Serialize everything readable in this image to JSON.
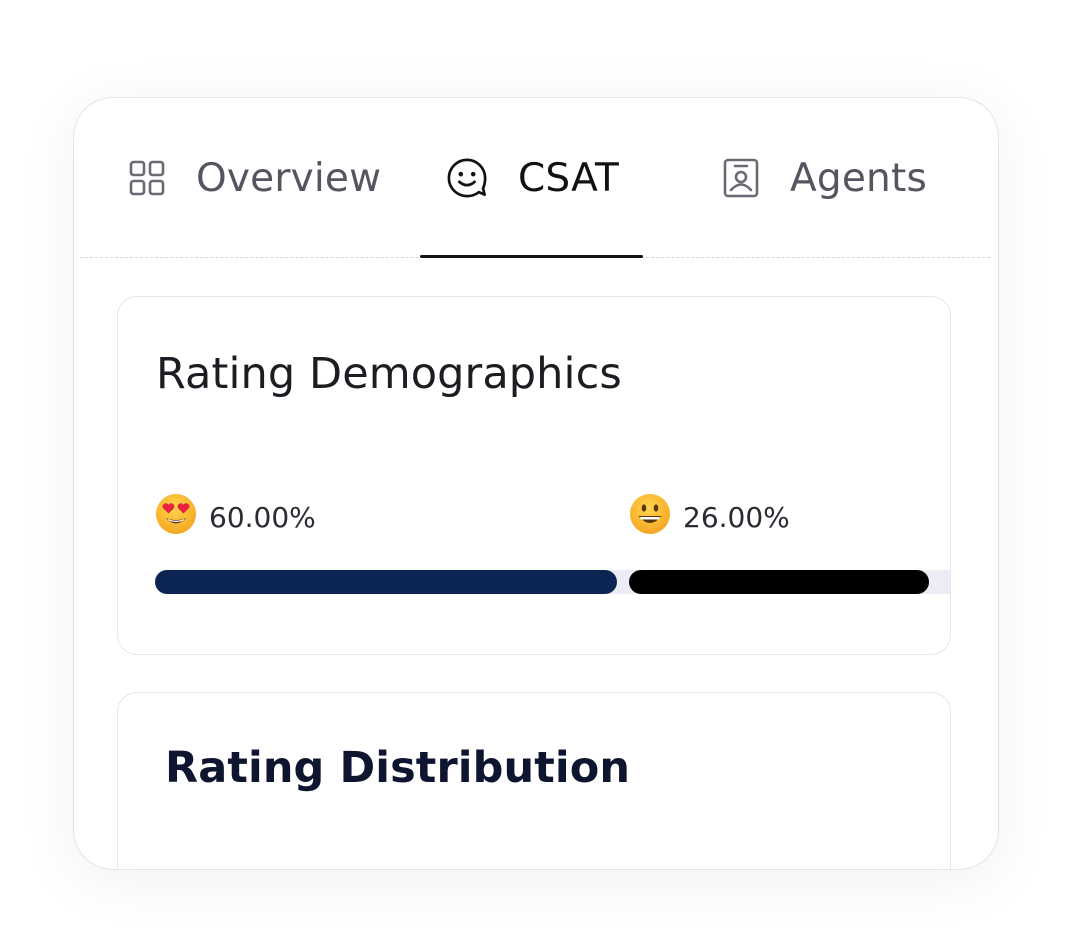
{
  "tabs": [
    {
      "label": "Overview",
      "icon": "grid-icon",
      "active": false
    },
    {
      "label": "CSAT",
      "icon": "smiley-face-icon",
      "active": true
    },
    {
      "label": "Agents",
      "icon": "id-badge-icon",
      "active": false
    }
  ],
  "rating_demographics": {
    "title": "Rating Demographics",
    "items": [
      {
        "emoji": "heart-eyes-emoji-icon",
        "percent_label": "60.00%",
        "share": 0.6,
        "color": "#0c2452"
      },
      {
        "emoji": "grinning-emoji-icon",
        "percent_label": "26.00%",
        "share": 0.26,
        "color": "#000000"
      }
    ],
    "track_color": "#ececf5"
  },
  "rating_distribution": {
    "title": "Rating Distribution"
  }
}
